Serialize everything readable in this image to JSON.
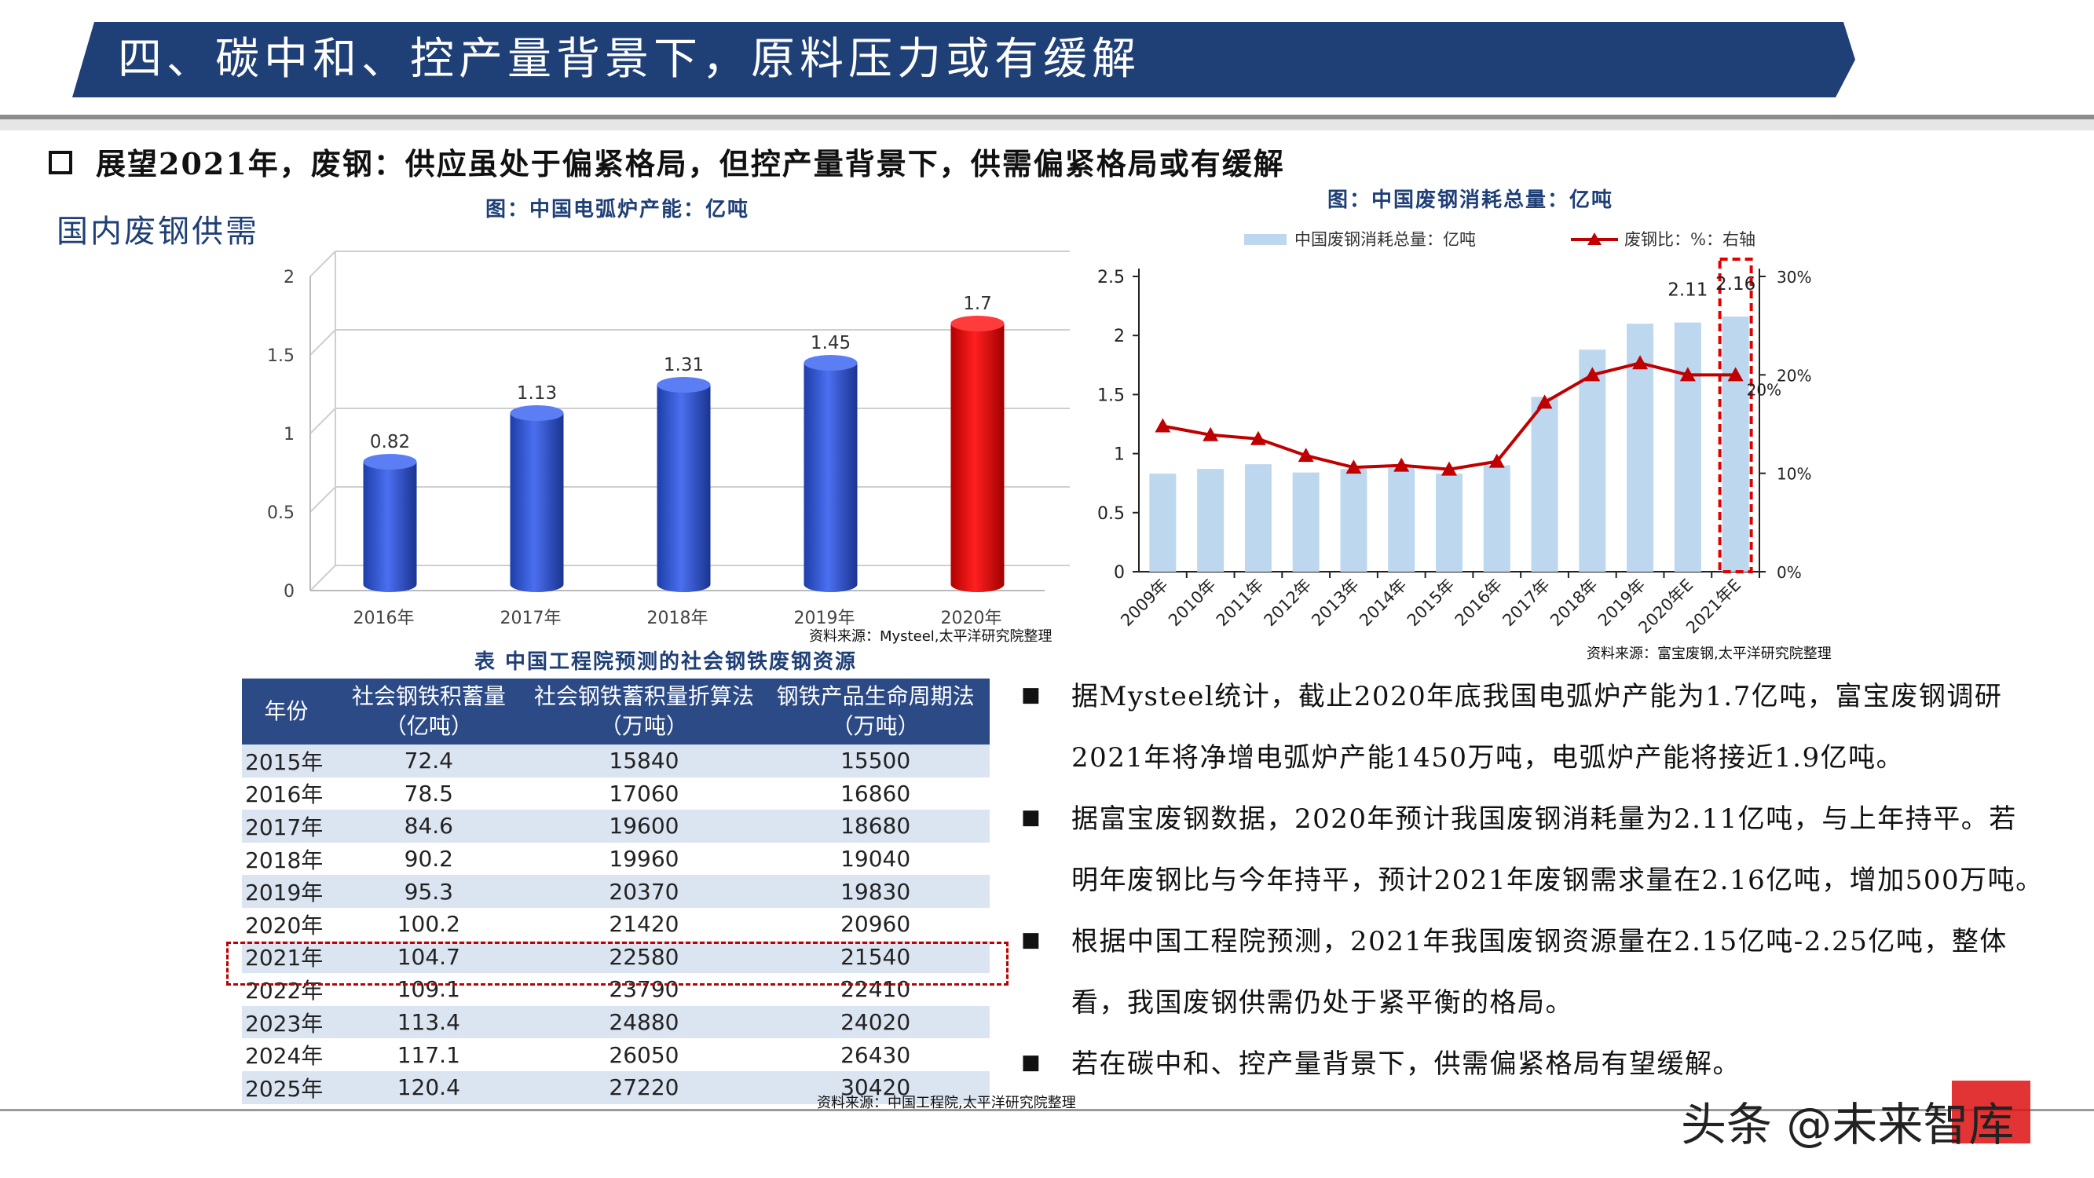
{
  "header": {
    "title": "四、碳中和、控产量背景下，原料压力或有缓解"
  },
  "headline": "展望2021年，废钢：供应虽处于偏紧格局，但控产量背景下，供需偏紧格局或有缓解",
  "section_label": "国内废钢供需",
  "chart_data": [
    {
      "type": "bar",
      "title": "图：中国电弧炉产能：亿吨",
      "categories": [
        "2016年",
        "2017年",
        "2018年",
        "2019年",
        "2020年"
      ],
      "values": [
        0.82,
        1.13,
        1.31,
        1.45,
        1.7
      ],
      "value_labels": [
        "0.82",
        "1.13",
        "1.31",
        "1.45",
        "1.7"
      ],
      "ylim": [
        0,
        2
      ],
      "yticks": [
        "0",
        "0.5",
        "1",
        "1.5",
        "2"
      ],
      "colors": [
        "#2f52c8",
        "#2f52c8",
        "#2f52c8",
        "#2f52c8",
        "#e00000"
      ],
      "grid": true,
      "source": "资料来源：Mysteel,太平洋研究院整理"
    },
    {
      "type": "bar+line",
      "title": "图：中国废钢消耗总量：亿吨",
      "categories": [
        "2009年",
        "2010年",
        "2011年",
        "2012年",
        "2013年",
        "2014年",
        "2015年",
        "2016年",
        "2017年",
        "2018年",
        "2019年",
        "2020年E",
        "2021年E"
      ],
      "series": [
        {
          "name": "中国废钢消耗总量：亿吨",
          "type": "bar",
          "axis": "left",
          "color": "#bdd7ee",
          "values": [
            0.83,
            0.87,
            0.91,
            0.84,
            0.87,
            0.88,
            0.83,
            0.9,
            1.48,
            1.88,
            2.1,
            2.11,
            2.16
          ]
        },
        {
          "name": "废钢比：%：右轴",
          "type": "line",
          "axis": "right",
          "color": "#c00000",
          "values": [
            14.8,
            13.9,
            13.5,
            11.8,
            10.6,
            10.8,
            10.4,
            11.2,
            17.2,
            20,
            21.2,
            20,
            20
          ]
        }
      ],
      "value_labels": [
        {
          "index": 11,
          "text": "2.11"
        },
        {
          "index": 12,
          "text": "2.16"
        },
        {
          "index": 12,
          "text": "20%"
        }
      ],
      "ylim": [
        0,
        2.5
      ],
      "yticks": [
        "0",
        "0.5",
        "1",
        "1.5",
        "2",
        "2.5"
      ],
      "y2lim": [
        0,
        30
      ],
      "y2ticks": [
        "0%",
        "10%",
        "20%",
        "30%"
      ],
      "legend": "top",
      "source": "资料来源：富宝废钢,太平洋研究院整理"
    },
    {
      "type": "table",
      "title": "表  中国工程院预测的社会钢铁废钢资源",
      "columns": [
        "年份",
        "社会钢铁积蓄量（亿吨）",
        "社会钢铁蓄积量折算法（万吨）",
        "钢铁产品生命周期法（万吨）"
      ],
      "header_lines": [
        [
          "年份"
        ],
        [
          "社会钢铁积蓄量",
          "（亿吨）"
        ],
        [
          "社会钢铁蓄积量折算法",
          "（万吨）"
        ],
        [
          "钢铁产品生命周期法",
          "（万吨）"
        ]
      ],
      "rows": [
        [
          "2015年",
          "72.4",
          "15840",
          "15500"
        ],
        [
          "2016年",
          "78.5",
          "17060",
          "16860"
        ],
        [
          "2017年",
          "84.6",
          "19600",
          "18680"
        ],
        [
          "2018年",
          "90.2",
          "19960",
          "19040"
        ],
        [
          "2019年",
          "95.3",
          "20370",
          "19830"
        ],
        [
          "2020年",
          "100.2",
          "21420",
          "20960"
        ],
        [
          "2021年",
          "104.7",
          "22580",
          "21540"
        ],
        [
          "2022年",
          "109.1",
          "23790",
          "22410"
        ],
        [
          "2023年",
          "113.4",
          "24880",
          "24020"
        ],
        [
          "2024年",
          "117.1",
          "26050",
          "26430"
        ],
        [
          "2025年",
          "120.4",
          "27220",
          "30420"
        ]
      ],
      "highlight_row": "2021年",
      "source": "资料来源：中国工程院,太平洋研究院整理"
    }
  ],
  "bullets": [
    {
      "mark": "■",
      "lines": [
        "据Mysteel统计，截止2020年底我国电弧炉产能为1.7亿吨，富宝废钢调研",
        "2021年将净增电弧炉产能1450万吨，电弧炉产能将接近1.9亿吨。"
      ]
    },
    {
      "mark": "■",
      "lines": [
        "据富宝废钢数据，2020年预计我国废钢消耗量为2.11亿吨，与上年持平。若",
        "明年废钢比与今年持平，预计2021年废钢需求量在2.16亿吨，增加500万吨。"
      ]
    },
    {
      "mark": "■",
      "lines": [
        "根据中国工程院预测，2021年我国废钢资源量在2.15亿吨-2.25亿吨，整体",
        "看，我国废钢供需仍处于紧平衡的格局。"
      ]
    },
    {
      "mark": "■",
      "lines": [
        "若在碳中和、控产量背景下，供需偏紧格局有望缓解。"
      ]
    }
  ],
  "watermark": "头条 @未来智库"
}
